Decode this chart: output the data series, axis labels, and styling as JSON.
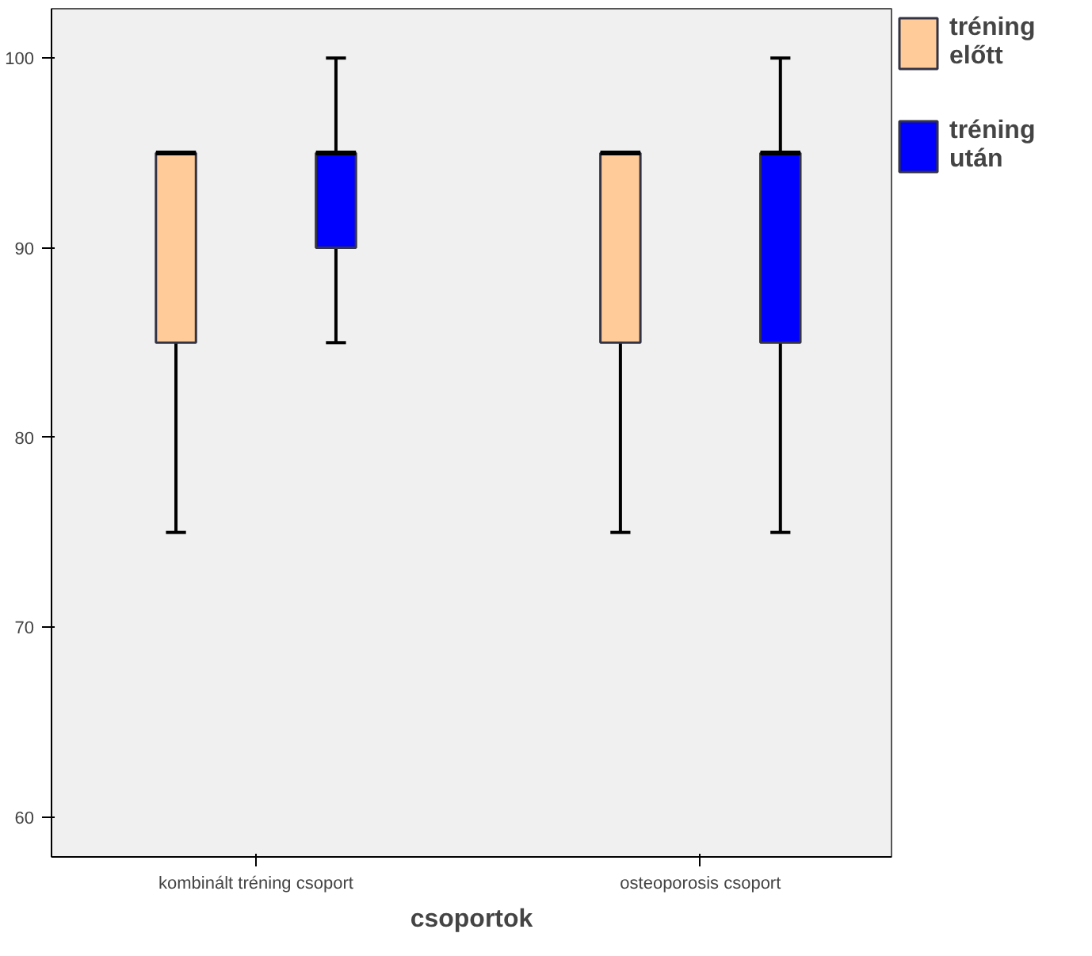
{
  "chart_data": {
    "type": "box",
    "xlabel": "csoportok",
    "categories": [
      "kombinált tréning csoport",
      "osteoporosis csoport"
    ],
    "ylim": [
      57.9,
      102.6
    ],
    "yticks": [
      60,
      70,
      80,
      90,
      100
    ],
    "grid": false,
    "legend": "top right",
    "series": [
      {
        "name": "tréning előtt",
        "color": "#ffcc99",
        "boxes": [
          {
            "low": 75,
            "q1": 85,
            "median": 95,
            "q3": 95,
            "high": 95
          },
          {
            "low": 75,
            "q1": 85,
            "median": 95,
            "q3": 95,
            "high": 95
          }
        ]
      },
      {
        "name": "tréning után",
        "color": "#0000ff",
        "boxes": [
          {
            "low": 85,
            "q1": 90,
            "median": 95,
            "q3": 95,
            "high": 100
          },
          {
            "low": 75,
            "q1": 85,
            "median": 95,
            "q3": 95,
            "high": 100
          }
        ]
      }
    ]
  }
}
